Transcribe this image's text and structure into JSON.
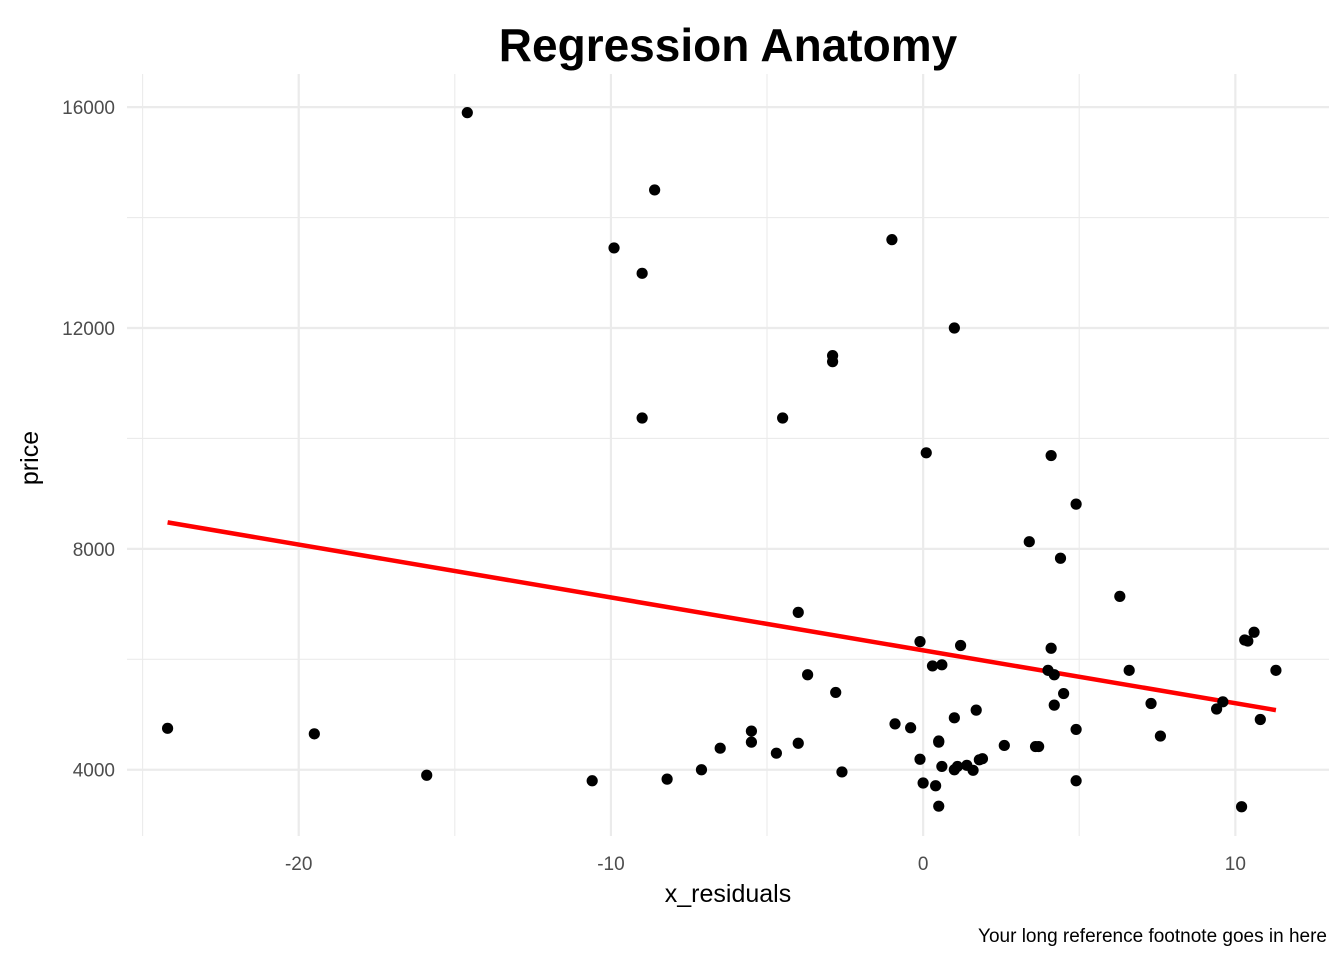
{
  "chart_data": {
    "type": "scatter",
    "title": "Regression Anatomy",
    "xlabel": "x_residuals",
    "ylabel": "price",
    "caption": "Your long reference footnote goes in here",
    "xlim": [
      -25.5,
      13.0
    ],
    "ylim": [
      2800,
      16600
    ],
    "x_ticks": [
      -20,
      -10,
      0,
      10
    ],
    "x_tick_labels": [
      "-20",
      "-10",
      "0",
      "10"
    ],
    "x_minor_ticks": [
      -25,
      -15,
      -5,
      5
    ],
    "y_ticks": [
      4000,
      8000,
      12000,
      16000
    ],
    "y_tick_labels": [
      "4000",
      "8000",
      "12000",
      "16000"
    ],
    "y_minor_ticks": [
      6000,
      10000,
      14000
    ],
    "grid": true,
    "legend": "none",
    "point_color": "#000000",
    "line_color": "#ff0000",
    "series": [
      {
        "type": "scatter",
        "points": [
          [
            -24.2,
            4750
          ],
          [
            -19.5,
            4650
          ],
          [
            -15.9,
            3900
          ],
          [
            -14.6,
            15900
          ],
          [
            -10.6,
            3800
          ],
          [
            -9.9,
            13450
          ],
          [
            -9.0,
            12990
          ],
          [
            -9.0,
            10370
          ],
          [
            -8.6,
            14500
          ],
          [
            -8.2,
            3830
          ],
          [
            -7.1,
            4000
          ],
          [
            -6.5,
            4390
          ],
          [
            -5.5,
            4700
          ],
          [
            -5.5,
            4500
          ],
          [
            -4.7,
            4300
          ],
          [
            -4.5,
            10370
          ],
          [
            -4.0,
            6850
          ],
          [
            -4.0,
            4480
          ],
          [
            -3.7,
            5720
          ],
          [
            -2.9,
            11500
          ],
          [
            -2.9,
            11390
          ],
          [
            -2.8,
            5400
          ],
          [
            -2.6,
            3960
          ],
          [
            -1.0,
            13600
          ],
          [
            -0.9,
            4830
          ],
          [
            -0.4,
            4760
          ],
          [
            -0.1,
            6320
          ],
          [
            -0.1,
            4190
          ],
          [
            0.0,
            3760
          ],
          [
            0.1,
            9740
          ],
          [
            0.3,
            5880
          ],
          [
            0.4,
            3710
          ],
          [
            0.5,
            4500
          ],
          [
            0.5,
            4520
          ],
          [
            0.5,
            3340
          ],
          [
            0.6,
            4060
          ],
          [
            0.6,
            5900
          ],
          [
            1.0,
            12000
          ],
          [
            1.0,
            4000
          ],
          [
            1.0,
            4940
          ],
          [
            1.1,
            4060
          ],
          [
            1.2,
            6250
          ],
          [
            1.4,
            4080
          ],
          [
            1.6,
            3990
          ],
          [
            1.7,
            5080
          ],
          [
            1.8,
            4180
          ],
          [
            1.9,
            4200
          ],
          [
            2.6,
            4440
          ],
          [
            3.4,
            8130
          ],
          [
            3.6,
            4420
          ],
          [
            3.7,
            4420
          ],
          [
            4.0,
            5800
          ],
          [
            4.1,
            6200
          ],
          [
            4.1,
            9690
          ],
          [
            4.2,
            5170
          ],
          [
            4.2,
            5720
          ],
          [
            4.4,
            7830
          ],
          [
            4.5,
            5380
          ],
          [
            4.9,
            8810
          ],
          [
            4.9,
            4730
          ],
          [
            4.9,
            3800
          ],
          [
            6.3,
            7140
          ],
          [
            6.6,
            5800
          ],
          [
            7.3,
            5200
          ],
          [
            7.6,
            4610
          ],
          [
            9.4,
            5100
          ],
          [
            9.6,
            5230
          ],
          [
            10.2,
            3330
          ],
          [
            10.3,
            6350
          ],
          [
            10.4,
            6330
          ],
          [
            10.6,
            6490
          ],
          [
            10.8,
            4910
          ],
          [
            11.3,
            5800
          ]
        ]
      },
      {
        "type": "line",
        "points": [
          [
            -24.2,
            8480
          ],
          [
            11.3,
            5080
          ]
        ]
      }
    ]
  }
}
